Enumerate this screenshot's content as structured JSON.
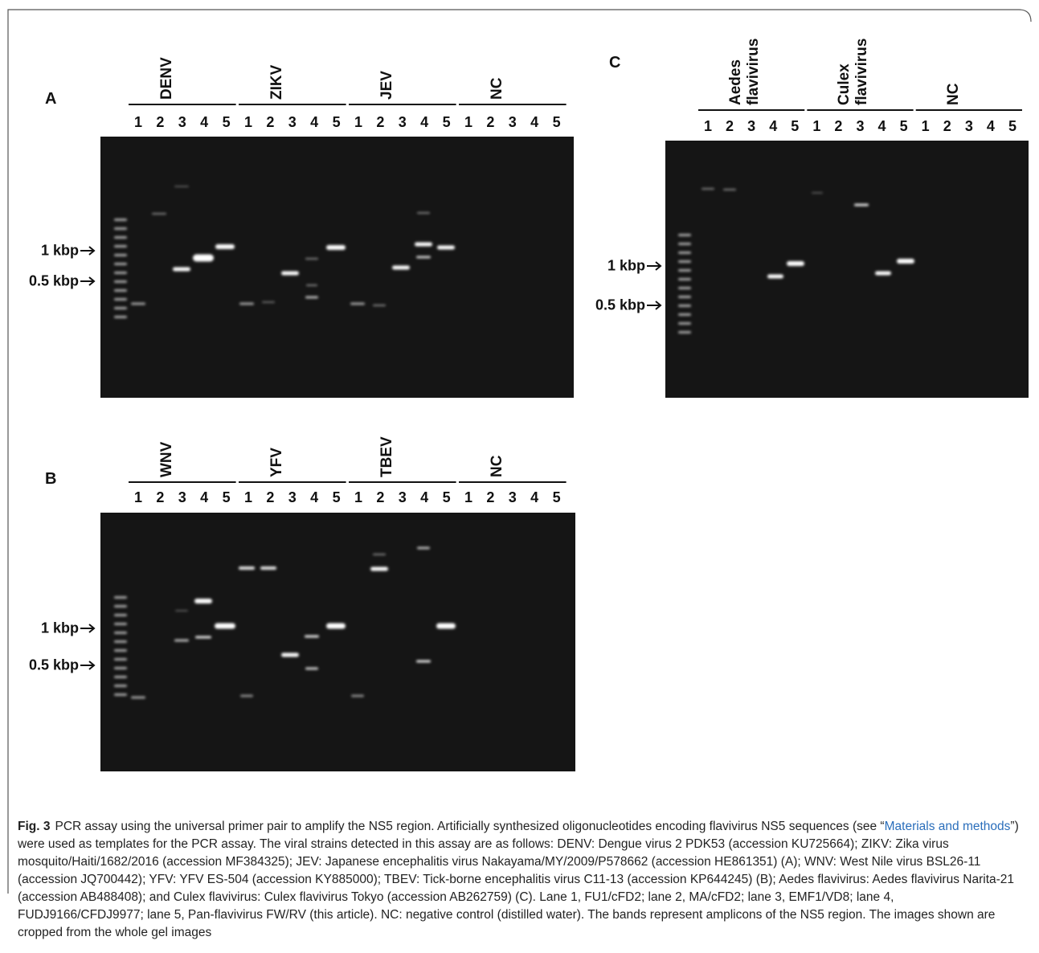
{
  "panels": [
    {
      "label": "A",
      "groups": [
        {
          "name": "DENV",
          "lanes": [
            "1",
            "2",
            "3",
            "4",
            "5"
          ]
        },
        {
          "name": "ZIKV",
          "lanes": [
            "1",
            "2",
            "3",
            "4",
            "5"
          ]
        },
        {
          "name": "JEV",
          "lanes": [
            "1",
            "2",
            "3",
            "4",
            "5"
          ]
        },
        {
          "name": "NC",
          "lanes": [
            "1",
            "2",
            "3",
            "4",
            "5"
          ]
        }
      ],
      "markers": [
        "1 kbp",
        "0.5 kbp"
      ]
    },
    {
      "label": "B",
      "groups": [
        {
          "name": "WNV",
          "lanes": [
            "1",
            "2",
            "3",
            "4",
            "5"
          ]
        },
        {
          "name": "YFV",
          "lanes": [
            "1",
            "2",
            "3",
            "4",
            "5"
          ]
        },
        {
          "name": "TBEV",
          "lanes": [
            "1",
            "2",
            "3",
            "4",
            "5"
          ]
        },
        {
          "name": "NC",
          "lanes": [
            "1",
            "2",
            "3",
            "4",
            "5"
          ]
        }
      ],
      "markers": [
        "1 kbp",
        "0.5 kbp"
      ]
    },
    {
      "label": "C",
      "groups": [
        {
          "name": "Aedes flavivirus",
          "lanes": [
            "1",
            "2",
            "3",
            "4",
            "5"
          ]
        },
        {
          "name": "Culex flavivirus",
          "lanes": [
            "1",
            "2",
            "3",
            "4",
            "5"
          ]
        },
        {
          "name": "NC",
          "lanes": [
            "1",
            "2",
            "3",
            "4",
            "5"
          ]
        }
      ],
      "markers": [
        "1 kbp",
        "0.5 kbp"
      ]
    }
  ],
  "caption": {
    "figure_label": "Fig. 3",
    "text_before": "PCR assay using the universal primer pair to amplify the NS5 region. Artificially synthesized oligonucleotides encoding flavivirus NS5 sequences (see “",
    "link": "Materials and methods",
    "text_after": "”) were used as templates for the PCR assay. The viral strains detected in this assay are as follows: DENV: Dengue virus 2 PDK53 (accession KU725664); ZIKV: Zika virus mosquito/Haiti/1682/2016 (accession MF384325); JEV: Japanese encephalitis virus Nakayama/MY/2009/P578662 (accession HE861351) (A); WNV: West Nile virus BSL26-11 (accession JQ700442); YFV: YFV ES-504 (accession KY885000); TBEV: Tick-borne encephalitis virus C11-13 (accession KP644245) (B); Aedes flavivirus: Aedes flavivirus Narita-21 (accession AB488408); and Culex flavivirus: Culex flavivirus Tokyo (accession AB262759) (C). Lane 1, FU1/cFD2; lane 2, MA/cFD2; lane 3, EMF1/VD8; lane 4, FUDJ9166/CFDJ9977; lane 5, Pan-flavivirus FW/RV (this article). NC: negative control (distilled water). The bands represent amplicons of the NS5 region. The images shown are cropped from the whole gel images"
  }
}
